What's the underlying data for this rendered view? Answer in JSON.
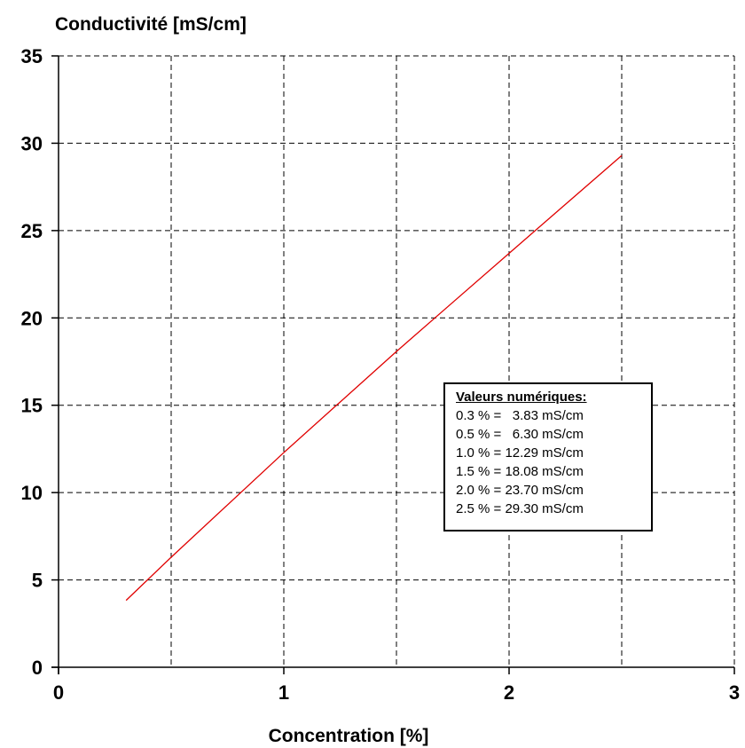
{
  "chart_data": {
    "type": "line",
    "title": "",
    "ylabel": "Conductivité [mS/cm]",
    "xlabel": "Concentration [%]",
    "xlim": [
      0,
      3
    ],
    "ylim": [
      0,
      35
    ],
    "x_ticks": [
      "0",
      "1",
      "2",
      "3"
    ],
    "y_ticks": [
      "0",
      "5",
      "10",
      "15",
      "20",
      "25",
      "30",
      "35"
    ],
    "grid": true,
    "grid_style": "dashed",
    "series": [
      {
        "color": "#e00000",
        "x": [
          0.3,
          0.5,
          1.0,
          1.5,
          2.0,
          2.5
        ],
        "y": [
          3.83,
          6.3,
          12.29,
          18.08,
          23.7,
          29.3
        ]
      }
    ],
    "annotation_box": {
      "title": "Valeurs numériques:",
      "lines": [
        "0.3 % =   3.83 mS/cm",
        "0.5 % =   6.30 mS/cm",
        "1.0 % = 12.29 mS/cm",
        "1.5 % = 18.08 mS/cm",
        "2.0 % = 23.70 mS/cm",
        "2.5 % = 29.30 mS/cm"
      ],
      "placement": "right"
    }
  }
}
